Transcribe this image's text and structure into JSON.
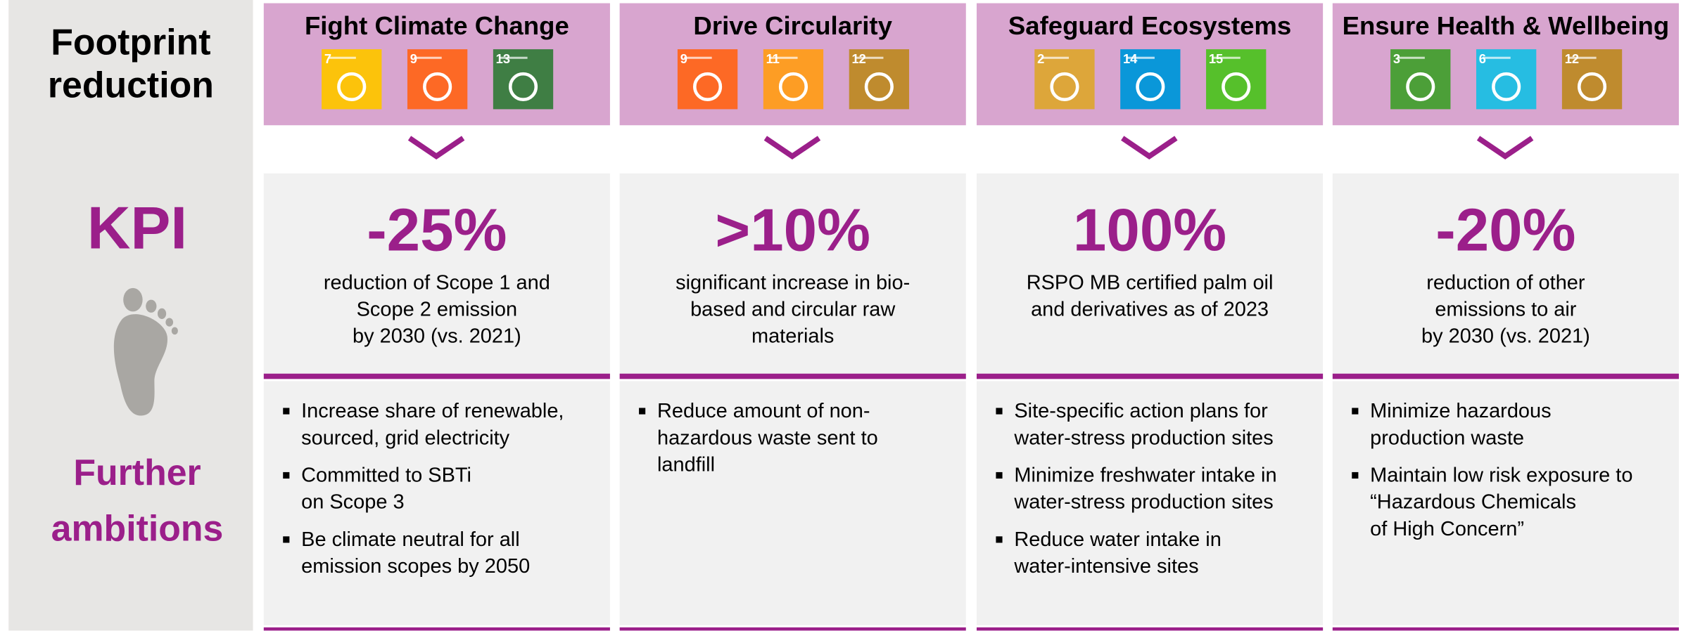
{
  "sidebar": {
    "title": "Footprint reduction",
    "kpi_label": "KPI",
    "ambitions_label": "Further ambitions"
  },
  "columns": [
    {
      "title": "Fight Climate Change",
      "sdgs": [
        {
          "number": "7",
          "color": "#fcc30b"
        },
        {
          "number": "9",
          "color": "#fd6925"
        },
        {
          "number": "13",
          "color": "#3f7e44"
        }
      ],
      "kpi": {
        "value": "-25%",
        "description": "reduction of Scope 1 and\nScope 2 emission\nby 2030 (vs. 2021)"
      },
      "ambitions": [
        "Increase share of renewable,\nsourced, grid electricity",
        "Committed to SBTi\non Scope 3",
        "Be climate neutral for all\nemission scopes by 2050"
      ]
    },
    {
      "title": "Drive Circularity",
      "sdgs": [
        {
          "number": "9",
          "color": "#fd6925"
        },
        {
          "number": "11",
          "color": "#fd9d24"
        },
        {
          "number": "12",
          "color": "#bf8b2e"
        }
      ],
      "kpi": {
        "value": ">10%",
        "description": "significant increase in bio-\nbased and circular raw\nmaterials"
      },
      "ambitions": [
        "Reduce amount of non-\nhazardous waste sent to\nlandfill"
      ]
    },
    {
      "title": "Safeguard Ecosystems",
      "sdgs": [
        {
          "number": "2",
          "color": "#dda63a"
        },
        {
          "number": "14",
          "color": "#0a97d9"
        },
        {
          "number": "15",
          "color": "#56c02b"
        }
      ],
      "kpi": {
        "value": "100%",
        "description": "RSPO MB certified palm oil\nand derivatives as of 2023"
      },
      "ambitions": [
        "Site-specific action plans for\nwater-stress production sites",
        "Minimize freshwater intake in\nwater-stress production sites",
        "Reduce water intake in\nwater-intensive sites"
      ]
    },
    {
      "title": "Ensure Health & Wellbeing",
      "sdgs": [
        {
          "number": "3",
          "color": "#4c9f38"
        },
        {
          "number": "6",
          "color": "#26bde2"
        },
        {
          "number": "12",
          "color": "#bf8b2e"
        }
      ],
      "kpi": {
        "value": "-20%",
        "description": "reduction of other\nemissions to air\nby 2030 (vs. 2021)"
      },
      "ambitions": [
        "Minimize hazardous\nproduction waste",
        "Maintain low risk exposure to\n“Hazardous Chemicals\nof High Concern”"
      ]
    }
  ]
}
